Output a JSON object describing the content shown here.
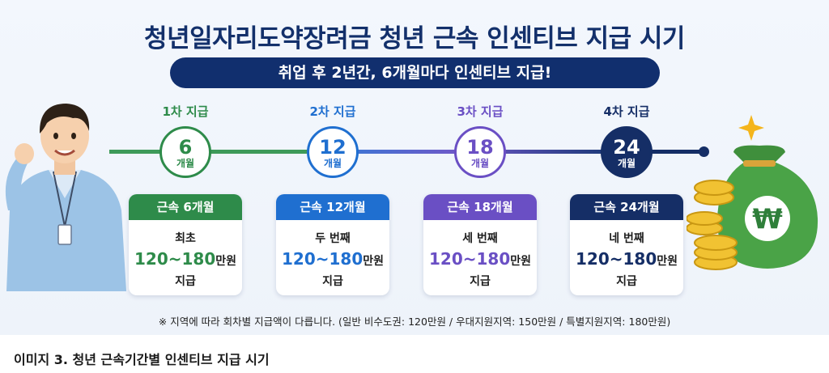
{
  "title": "청년일자리도약장려금 청년 근속 인센티브 지급 시기",
  "subtitle_pill": "취업 후 2년간, 6개월마다 인센티브 지급!",
  "stages": [
    {
      "label": "1차 지급",
      "number": "6",
      "unit": "개월",
      "card_header": "근속 6개월",
      "card_line1": "최초",
      "amount": "120~180",
      "amount_unit": "만원",
      "card_line3": "지급",
      "color": "#2e8b4a"
    },
    {
      "label": "2차 지급",
      "number": "12",
      "unit": "개월",
      "card_header": "근속 12개월",
      "card_line1": "두 번째",
      "amount": "120~180",
      "amount_unit": "만원",
      "card_line3": "지급",
      "color": "#1f6fd0"
    },
    {
      "label": "3차 지급",
      "number": "18",
      "unit": "개월",
      "card_header": "근속 18개월",
      "card_line1": "세 번째",
      "amount": "120~180",
      "amount_unit": "만원",
      "card_line3": "지급",
      "color": "#6a4fc4"
    },
    {
      "label": "4차 지급",
      "number": "24",
      "unit": "개월",
      "card_header": "근속 24개월",
      "card_line1": "네 번째",
      "amount": "120~180",
      "amount_unit": "만원",
      "card_line3": "지급",
      "color": "#152e66"
    }
  ],
  "footnote": "※ 지역에 따라 회차별 지급액이 다릅니다. (일반 비수도권: 120만원 / 우대지원지역: 150만원 / 특별지원지역: 180만원)",
  "caption": "이미지 3. 청년 근속기간별 인센티브 지급 시기",
  "icons": {
    "person": "office-worker-illustration",
    "money": "money-bag-icon",
    "coins": "gold-coins-icon",
    "sparkle": "sparkle-icon",
    "currency": "₩"
  }
}
